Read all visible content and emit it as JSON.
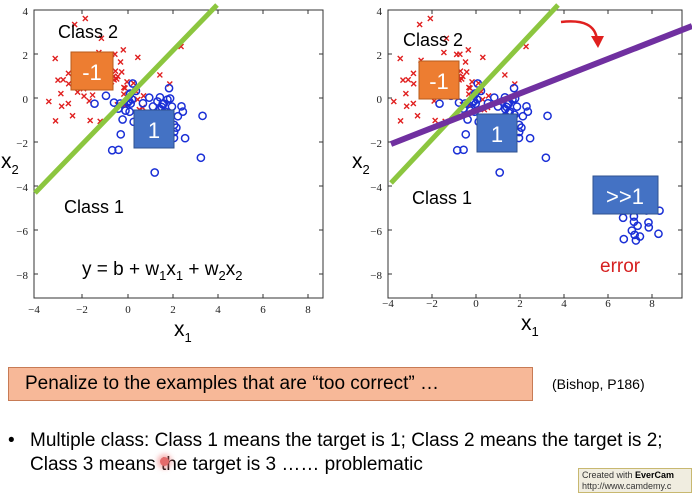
{
  "left_plot": {
    "x_ticks": [
      "−4",
      "−2",
      "0",
      "2",
      "4",
      "6",
      "8"
    ],
    "y_ticks": [
      "4",
      "2",
      "0",
      "−2",
      "−4",
      "−6",
      "−8"
    ],
    "x_label": "x",
    "x_label_sub": "1",
    "y_label": "x",
    "y_label_sub": "2",
    "class2_label": "Class 2",
    "class1_label": "Class 1",
    "badge_neg": "-1",
    "badge_pos": "1",
    "equation": {
      "lhs": "y = b + w",
      "s1": "1",
      "mid": "x",
      "s2": "1",
      "plus": " + w",
      "s3": "2",
      "x2": "x",
      "s4": "2"
    }
  },
  "right_plot": {
    "x_ticks": [
      "−4",
      "−2",
      "0",
      "2",
      "4",
      "6",
      "8"
    ],
    "y_ticks": [
      "4",
      "2",
      "0",
      "−2",
      "−4",
      "−6",
      "−8"
    ],
    "x_label": "x",
    "x_label_sub": "1",
    "y_label": "x",
    "y_label_sub": "2",
    "class2_label": "Class 2",
    "class1_label": "Class 1",
    "badge_neg": "-1",
    "badge_pos": "1",
    "badge_far": ">>1",
    "error_label": "error"
  },
  "callout": "Penalize to the examples that are “too correct” …",
  "reference": "(Bishop, P186)",
  "bullet": {
    "marker": "•",
    "text": "Multiple class: Class 1 means the target is 1; Class 2 means the target is 2; Class 3 means the target is 3 …… problematic"
  },
  "watermark": {
    "line1_prefix": "Created with ",
    "line1_brand": "EverCam",
    "line2": "http://www.camdemy.c"
  },
  "colors": {
    "class2_marker": "#e02020",
    "class1_marker": "#1a2fd6",
    "green_boundary": "#8cc63f",
    "purple_boundary": "#7030a0",
    "badge_orange": "#ed7d31",
    "badge_blue": "#4472c4",
    "error_red": "#d62020",
    "callout_bg": "#f7b898"
  }
}
